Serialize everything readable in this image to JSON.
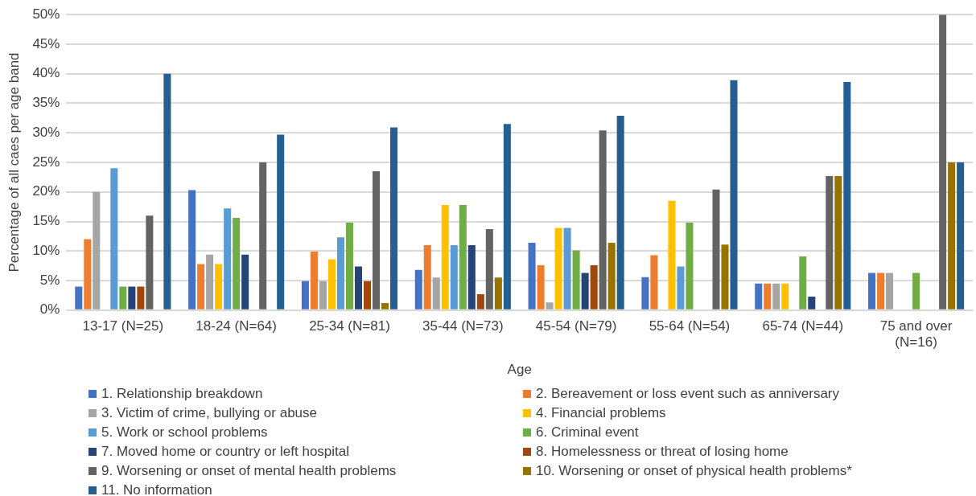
{
  "chart_data": {
    "type": "bar",
    "xlabel": "Age",
    "ylabel": "Percentage of all caes per age band",
    "categories": [
      "13-17 (N=25)",
      "18-24 (N=64)",
      "25-34 (N=81)",
      "35-44 (N=73)",
      "45-54 (N=79)",
      "55-64 (N=54)",
      "65-74 (N=44)",
      "75 and over (N=16)"
    ],
    "ylim": [
      0,
      50
    ],
    "yticks": [
      {
        "value": 0,
        "label": "0%"
      },
      {
        "value": 5,
        "label": "5%"
      },
      {
        "value": 10,
        "label": "10%"
      },
      {
        "value": 15,
        "label": "15%"
      },
      {
        "value": 20,
        "label": "20%"
      },
      {
        "value": 25,
        "label": "25%"
      },
      {
        "value": 30,
        "label": "30%"
      },
      {
        "value": 35,
        "label": "35%"
      },
      {
        "value": 40,
        "label": "40%"
      },
      {
        "value": 45,
        "label": "45%"
      },
      {
        "value": 50,
        "label": "50%"
      }
    ],
    "grid": "y",
    "legend": "bottom",
    "series": [
      {
        "name": "1. Relationship breakdown",
        "color": "#4472c4",
        "values": [
          4,
          20.3,
          4.9,
          6.8,
          11.4,
          5.6,
          4.5,
          6.3
        ]
      },
      {
        "name": "2. Bereavement or loss event such as anniversary",
        "color": "#ed7d31",
        "values": [
          12,
          7.8,
          9.9,
          11,
          7.6,
          9.3,
          4.5,
          6.3
        ]
      },
      {
        "name": "3. Victim of crime, bullying or abuse",
        "color": "#a5a5a5",
        "values": [
          20,
          9.4,
          4.9,
          5.5,
          1.3,
          null,
          4.5,
          6.3
        ]
      },
      {
        "name": "4. Financial problems",
        "color": "#ffc000",
        "values": [
          null,
          7.8,
          8.6,
          17.8,
          13.9,
          18.5,
          4.5,
          null
        ]
      },
      {
        "name": "5. Work or school problems",
        "color": "#5b9bd5",
        "values": [
          24,
          17.2,
          12.3,
          11,
          13.9,
          7.4,
          null,
          null
        ]
      },
      {
        "name": "6. Criminal event",
        "color": "#70ad47",
        "values": [
          4,
          15.6,
          14.8,
          17.8,
          10.1,
          14.8,
          9.1,
          6.3
        ]
      },
      {
        "name": "7. Moved home or country or left hospital",
        "color": "#264478",
        "values": [
          4,
          9.4,
          7.4,
          11,
          6.3,
          null,
          2.3,
          null
        ]
      },
      {
        "name": "8. Homelessness or threat of losing home",
        "color": "#9e480e",
        "values": [
          4,
          null,
          4.9,
          2.7,
          7.6,
          null,
          null,
          null
        ]
      },
      {
        "name": "9. Worsening or onset of mental health problems",
        "color": "#636363",
        "values": [
          16,
          25,
          23.5,
          13.7,
          30.4,
          20.4,
          22.7,
          50
        ]
      },
      {
        "name": "10. Worsening or onset of physical health problems*",
        "color": "#997300",
        "values": [
          null,
          null,
          1.2,
          5.5,
          11.4,
          11.1,
          22.7,
          25
        ]
      },
      {
        "name": "11. No information",
        "color": "#255e91",
        "values": [
          40,
          29.7,
          30.9,
          31.5,
          32.9,
          38.9,
          38.6,
          25
        ]
      }
    ]
  }
}
